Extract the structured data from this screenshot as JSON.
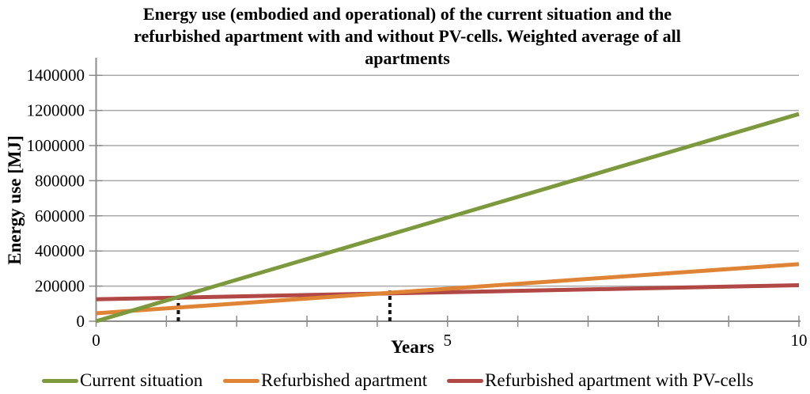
{
  "page": {
    "background": "#ffffff"
  },
  "chart_data": {
    "type": "line",
    "title": "Energy use (embodied and operational) of the current situation and the refurbished apartment with and without PV-cells. Weighted average of all apartments",
    "title_lines": [
      "Energy use (embodied and operational) of the current situation and the",
      "refurbished apartment with and without PV-cells. Weighted average of all",
      "apartments"
    ],
    "xlabel": "Years",
    "ylabel": "Energy use [MJ]",
    "xlim": [
      0,
      10
    ],
    "ylim": [
      0,
      1500000
    ],
    "y_tick_interval": 200000,
    "y_ticks": [
      0,
      200000,
      400000,
      600000,
      800000,
      1000000,
      1200000,
      1400000
    ],
    "x_ticks": [
      0,
      1,
      2,
      3,
      4,
      5,
      6,
      7,
      8,
      9,
      10
    ],
    "x_labeled_ticks": [
      0,
      5,
      10
    ],
    "grid": "horizontal-major",
    "legend_position": "bottom",
    "axis_color": "#8c8c8c",
    "gridline_color": "#a8a8a8",
    "annotation_color": "#151515",
    "series": [
      {
        "name": "Current situation",
        "color": "#7C9A3D",
        "x": [
          0,
          10
        ],
        "values": [
          0,
          1180000
        ]
      },
      {
        "name": "Refurbished apartment",
        "color": "#DF8334",
        "x": [
          0,
          10
        ],
        "values": [
          45000,
          325000
        ]
      },
      {
        "name": "Refurbished apartment with PV-cells",
        "color": "#B14845",
        "x": [
          0,
          10
        ],
        "values": [
          125000,
          205000
        ]
      }
    ],
    "annotations": [
      {
        "type": "dotted-vline",
        "x": 1.17,
        "y_from": 0,
        "y_to": 140000
      },
      {
        "type": "dotted-vline",
        "x": 4.18,
        "y_from": 0,
        "y_to": 175000
      }
    ]
  }
}
